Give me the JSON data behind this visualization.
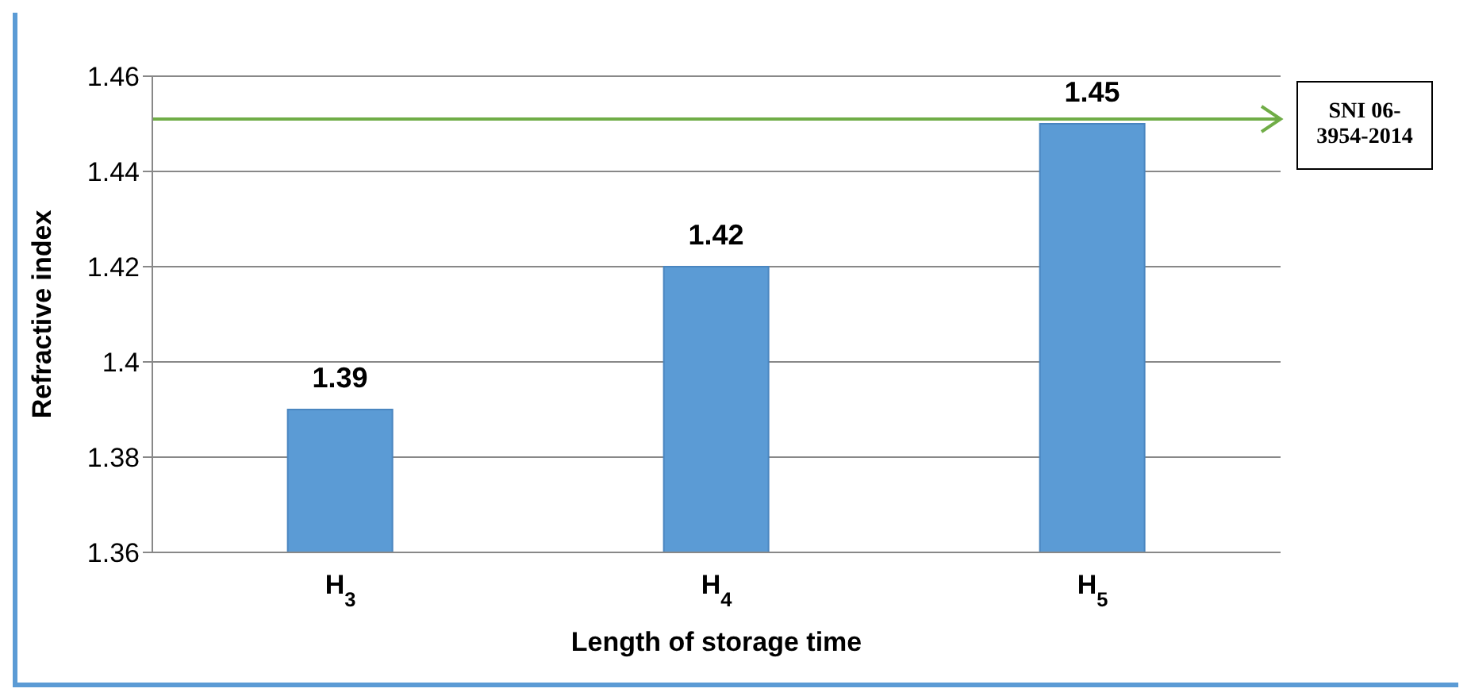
{
  "chart_data": {
    "type": "bar",
    "xlabel": "Length of storage time",
    "ylabel": "Refractive index",
    "categories": [
      "H$_{3}$",
      "H$_{4}$",
      "H$_{5}$"
    ],
    "values": [
      1.39,
      1.42,
      1.45
    ],
    "color": "#5b9bd5",
    "ylim": [
      1.36,
      1.46
    ],
    "yticks": [
      1.36,
      1.38,
      {
        "value": 1.4,
        "label": "1.4"
      },
      1.42,
      1.44,
      1.46
    ],
    "grid": "y",
    "data_labels": true,
    "ref_lines": [
      {
        "axis": "y",
        "value": 1.451,
        "label": "SNI 06-3954-2014",
        "color": "#70ad47"
      }
    ]
  }
}
